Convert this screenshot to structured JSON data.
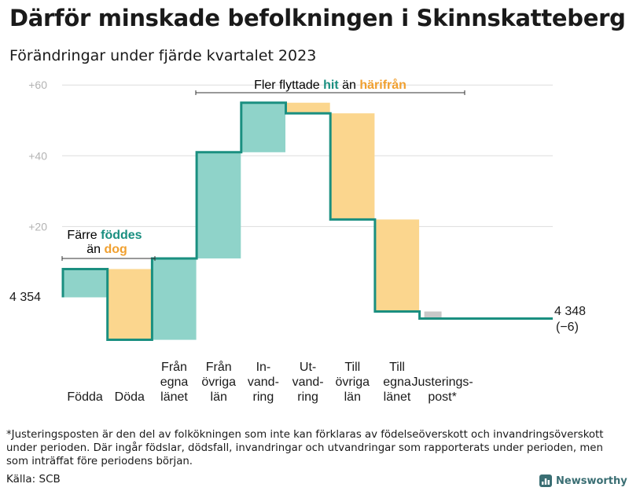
{
  "title": "Därför minskade befolkningen i Skinnskatteberg",
  "subtitle": "Förändringar under fjärde kvartalet 2023",
  "colors": {
    "increase": "#8fd3c9",
    "decrease": "#fbd68e",
    "adjustment": "#c8c8c8",
    "line": "#1a8f80",
    "accent_teal": "#1a8f80",
    "accent_orange": "#f0a030",
    "grid": "#dddddd",
    "tick": "#b3b3b3"
  },
  "annotations": {
    "left": {
      "line1": "Färre",
      "line1_highlight": "föddes",
      "line2": "än",
      "line2_highlight": "dog"
    },
    "right": {
      "text1": "Fler flyttade",
      "highlight1": "hit",
      "text2": "än",
      "highlight2": "härifrån"
    }
  },
  "chart_data": {
    "type": "waterfall",
    "baseline_label": "4 354",
    "end_label": "4 348",
    "end_change": "(−6)",
    "ylim": [
      -13,
      61
    ],
    "y_ticks": [
      {
        "value": 20,
        "label": "+20"
      },
      {
        "value": 40,
        "label": "+40"
      },
      {
        "value": 60,
        "label": "+60"
      }
    ],
    "categories": [
      {
        "lines": [
          "Födda"
        ],
        "start": 0,
        "end": 8,
        "kind": "increase"
      },
      {
        "lines": [
          "Döda"
        ],
        "start": 8,
        "end": -12,
        "kind": "decrease"
      },
      {
        "lines": [
          "Från",
          "egna",
          "länet"
        ],
        "start": -12,
        "end": 11,
        "kind": "increase"
      },
      {
        "lines": [
          "Från",
          "övriga",
          "län"
        ],
        "start": 11,
        "end": 41,
        "kind": "increase"
      },
      {
        "lines": [
          "In-",
          "vand-",
          "ring"
        ],
        "start": 41,
        "end": 55,
        "kind": "increase"
      },
      {
        "lines": [
          "Ut-",
          "vand-",
          "ring"
        ],
        "start": 55,
        "end": 52,
        "kind": "decrease"
      },
      {
        "lines": [
          "Till",
          "övriga",
          "län"
        ],
        "start": 52,
        "end": 22,
        "kind": "decrease"
      },
      {
        "lines": [
          "Till",
          "egna",
          "länet"
        ],
        "start": 22,
        "end": -4,
        "kind": "decrease"
      },
      {
        "lines": [
          "Justerings-",
          "post*"
        ],
        "start": -4,
        "end": -6,
        "kind": "adjustment"
      }
    ]
  },
  "footnote": "*Justeringsposten är den del av folkökningen som inte kan förklaras av födelseöverskott och invandringsöverskott under perioden. Där ingår födslar, dödsfall, invandringar och utvandringar som rapporterats under perioden, men som inträffat före periodens början.",
  "source": "Källa: SCB",
  "brand": {
    "name": "Newsworthy",
    "icon": "bar-chart-logo-icon"
  }
}
